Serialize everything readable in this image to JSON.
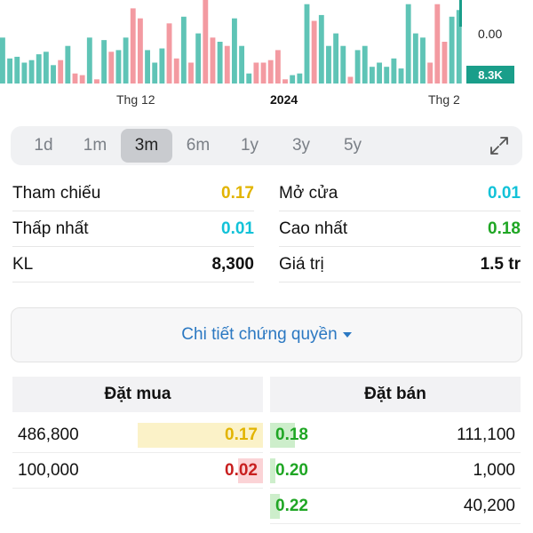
{
  "chart": {
    "x_labels": [
      "Thg 12",
      "2024",
      "Thg 2"
    ],
    "price_label": "0.00",
    "volume_badge": "8.3K",
    "colors": {
      "up": "#5fc4b6",
      "down": "#f39aa1",
      "badge": "#1a9e8a"
    },
    "bars": [
      {
        "v": 0.55,
        "c": "up"
      },
      {
        "v": 0.3,
        "c": "up"
      },
      {
        "v": 0.32,
        "c": "up"
      },
      {
        "v": 0.25,
        "c": "up"
      },
      {
        "v": 0.28,
        "c": "up"
      },
      {
        "v": 0.35,
        "c": "up"
      },
      {
        "v": 0.38,
        "c": "up"
      },
      {
        "v": 0.22,
        "c": "up"
      },
      {
        "v": 0.28,
        "c": "down"
      },
      {
        "v": 0.45,
        "c": "up"
      },
      {
        "v": 0.12,
        "c": "down"
      },
      {
        "v": 0.1,
        "c": "down"
      },
      {
        "v": 0.55,
        "c": "up"
      },
      {
        "v": 0.05,
        "c": "down"
      },
      {
        "v": 0.52,
        "c": "up"
      },
      {
        "v": 0.38,
        "c": "down"
      },
      {
        "v": 0.4,
        "c": "up"
      },
      {
        "v": 0.55,
        "c": "up"
      },
      {
        "v": 0.9,
        "c": "down"
      },
      {
        "v": 0.78,
        "c": "down"
      },
      {
        "v": 0.4,
        "c": "up"
      },
      {
        "v": 0.25,
        "c": "up"
      },
      {
        "v": 0.42,
        "c": "up"
      },
      {
        "v": 0.72,
        "c": "down"
      },
      {
        "v": 0.3,
        "c": "down"
      },
      {
        "v": 0.8,
        "c": "up"
      },
      {
        "v": 0.25,
        "c": "down"
      },
      {
        "v": 0.6,
        "c": "up"
      },
      {
        "v": 1.0,
        "c": "down"
      },
      {
        "v": 0.55,
        "c": "down"
      },
      {
        "v": 0.5,
        "c": "up"
      },
      {
        "v": 0.45,
        "c": "down"
      },
      {
        "v": 0.78,
        "c": "up"
      },
      {
        "v": 0.45,
        "c": "up"
      },
      {
        "v": 0.12,
        "c": "up"
      },
      {
        "v": 0.25,
        "c": "down"
      },
      {
        "v": 0.25,
        "c": "down"
      },
      {
        "v": 0.28,
        "c": "down"
      },
      {
        "v": 0.4,
        "c": "down"
      },
      {
        "v": 0.05,
        "c": "down"
      },
      {
        "v": 0.1,
        "c": "up"
      },
      {
        "v": 0.12,
        "c": "up"
      },
      {
        "v": 0.95,
        "c": "up"
      },
      {
        "v": 0.75,
        "c": "down"
      },
      {
        "v": 0.82,
        "c": "up"
      },
      {
        "v": 0.45,
        "c": "up"
      },
      {
        "v": 0.6,
        "c": "up"
      },
      {
        "v": 0.45,
        "c": "up"
      },
      {
        "v": 0.08,
        "c": "down"
      },
      {
        "v": 0.4,
        "c": "up"
      },
      {
        "v": 0.45,
        "c": "up"
      },
      {
        "v": 0.2,
        "c": "up"
      },
      {
        "v": 0.25,
        "c": "up"
      },
      {
        "v": 0.2,
        "c": "up"
      },
      {
        "v": 0.3,
        "c": "up"
      },
      {
        "v": 0.18,
        "c": "up"
      },
      {
        "v": 0.95,
        "c": "up"
      },
      {
        "v": 0.6,
        "c": "up"
      },
      {
        "v": 0.55,
        "c": "up"
      },
      {
        "v": 0.25,
        "c": "down"
      },
      {
        "v": 0.95,
        "c": "down"
      },
      {
        "v": 0.5,
        "c": "down"
      },
      {
        "v": 0.8,
        "c": "up"
      },
      {
        "v": 0.88,
        "c": "up"
      }
    ]
  },
  "ranges": {
    "items": [
      "1d",
      "1m",
      "3m",
      "6m",
      "1y",
      "3y",
      "5y"
    ],
    "active": 2
  },
  "stats": {
    "left": [
      {
        "label": "Tham chiếu",
        "value": "0.17",
        "color": "yellow"
      },
      {
        "label": "Thấp nhất",
        "value": "0.01",
        "color": "cyan"
      },
      {
        "label": "KL",
        "value": "8,300",
        "color": "black"
      }
    ],
    "right": [
      {
        "label": "Mở cửa",
        "value": "0.01",
        "color": "cyan"
      },
      {
        "label": "Cao nhất",
        "value": "0.18",
        "color": "green"
      },
      {
        "label": "Giá trị",
        "value": "1.5 tr",
        "color": "black"
      }
    ]
  },
  "detail_button": "Chi tiết chứng quyền",
  "orderbook": {
    "buy_title": "Đặt mua",
    "sell_title": "Đặt bán",
    "buy": [
      {
        "qty": "486,800",
        "price": "0.17",
        "color": "yellow",
        "fill": 0.5
      },
      {
        "qty": "100,000",
        "price": "0.02",
        "color": "red",
        "fill": 0.1
      }
    ],
    "sell": [
      {
        "price": "0.18",
        "qty": "111,100",
        "color": "green",
        "fill": 0.1
      },
      {
        "price": "0.20",
        "qty": "1,000",
        "color": "green",
        "fill": 0.02
      },
      {
        "price": "0.22",
        "qty": "40,200",
        "color": "green",
        "fill": 0.04
      }
    ]
  }
}
